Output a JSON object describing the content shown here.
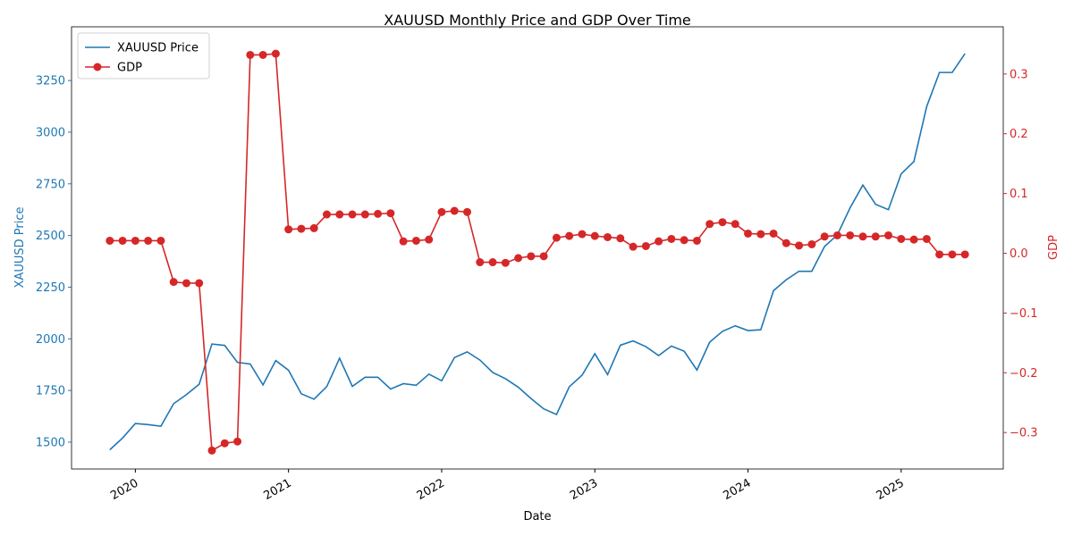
{
  "chart_data": {
    "type": "line",
    "title": "XAUUSD Monthly Price and GDP Over Time",
    "xlabel": "Date",
    "ylabel": "XAUUSD Price",
    "y2label": "GDP",
    "x": [
      "2019-11",
      "2019-12",
      "2020-01",
      "2020-02",
      "2020-03",
      "2020-04",
      "2020-05",
      "2020-06",
      "2020-07",
      "2020-08",
      "2020-09",
      "2020-10",
      "2020-11",
      "2020-12",
      "2021-01",
      "2021-02",
      "2021-03",
      "2021-04",
      "2021-05",
      "2021-06",
      "2021-07",
      "2021-08",
      "2021-09",
      "2021-10",
      "2021-11",
      "2021-12",
      "2022-01",
      "2022-02",
      "2022-03",
      "2022-04",
      "2022-05",
      "2022-06",
      "2022-07",
      "2022-08",
      "2022-09",
      "2022-10",
      "2022-11",
      "2022-12",
      "2023-01",
      "2023-02",
      "2023-03",
      "2023-04",
      "2023-05",
      "2023-06",
      "2023-07",
      "2023-08",
      "2023-09",
      "2023-10",
      "2023-11",
      "2023-12",
      "2024-01",
      "2024-02",
      "2024-03",
      "2024-04",
      "2024-05",
      "2024-06",
      "2024-07",
      "2024-08",
      "2024-09",
      "2024-10",
      "2024-11",
      "2024-12",
      "2025-01",
      "2025-02",
      "2025-03",
      "2025-04",
      "2025-05",
      "2025-06"
    ],
    "series": [
      {
        "name": "XAUUSD Price",
        "color": "#1f77b4",
        "axis": "y",
        "marker": false,
        "values": [
          1463,
          1520,
          1590,
          1585,
          1577,
          1686,
          1730,
          1780,
          1975,
          1968,
          1886,
          1878,
          1777,
          1895,
          1848,
          1734,
          1708,
          1769,
          1906,
          1770,
          1814,
          1814,
          1757,
          1783,
          1775,
          1829,
          1797,
          1909,
          1937,
          1897,
          1837,
          1807,
          1766,
          1711,
          1661,
          1634,
          1768,
          1824,
          1928,
          1827,
          1969,
          1990,
          1962,
          1919,
          1965,
          1940,
          1849,
          1984,
          2036,
          2063,
          2040,
          2044,
          2233,
          2286,
          2327,
          2327,
          2447,
          2503,
          2634,
          2744,
          2651,
          2625,
          2798,
          2858,
          3124,
          3289,
          3289,
          3380
        ]
      },
      {
        "name": "GDP",
        "color": "#d62728",
        "axis": "y2",
        "marker": true,
        "values": [
          0.021,
          0.021,
          0.021,
          0.021,
          0.021,
          -0.048,
          -0.05,
          -0.05,
          -0.33,
          -0.318,
          -0.315,
          0.332,
          0.332,
          0.334,
          0.04,
          0.041,
          0.042,
          0.065,
          0.065,
          0.065,
          0.065,
          0.066,
          0.067,
          0.02,
          0.021,
          0.023,
          0.069,
          0.071,
          0.069,
          -0.015,
          -0.015,
          -0.016,
          -0.008,
          -0.005,
          -0.005,
          0.026,
          0.029,
          0.032,
          0.029,
          0.027,
          0.025,
          0.011,
          0.012,
          0.02,
          0.024,
          0.022,
          0.021,
          0.049,
          0.052,
          0.049,
          0.033,
          0.032,
          0.033,
          0.017,
          0.013,
          0.015,
          0.028,
          0.03,
          0.03,
          0.028,
          0.028,
          0.03,
          0.024,
          0.023,
          0.024,
          -0.002,
          -0.002,
          -0.002
        ]
      }
    ],
    "xlim": [
      "2019-08",
      "2025-09"
    ],
    "xticks": [
      {
        "value": "2020-01",
        "label": "2020"
      },
      {
        "value": "2021-01",
        "label": "2021"
      },
      {
        "value": "2022-01",
        "label": "2022"
      },
      {
        "value": "2023-01",
        "label": "2023"
      },
      {
        "value": "2024-01",
        "label": "2024"
      },
      {
        "value": "2025-01",
        "label": "2025"
      }
    ],
    "ylim": [
      1370,
      3510
    ],
    "yticks": [
      1500,
      1750,
      2000,
      2250,
      2500,
      2750,
      3000,
      3250
    ],
    "y2lim": [
      -0.361,
      0.379
    ],
    "y2ticks": [
      {
        "value": -0.3,
        "label": "−0.3"
      },
      {
        "value": -0.2,
        "label": "−0.2"
      },
      {
        "value": -0.1,
        "label": "−0.1"
      },
      {
        "value": 0,
        "label": "0.0"
      },
      {
        "value": 0.1,
        "label": "0.1"
      },
      {
        "value": 0.2,
        "label": "0.2"
      },
      {
        "value": 0.3,
        "label": "0.3"
      }
    ],
    "legend": "upper left",
    "grid": false
  }
}
